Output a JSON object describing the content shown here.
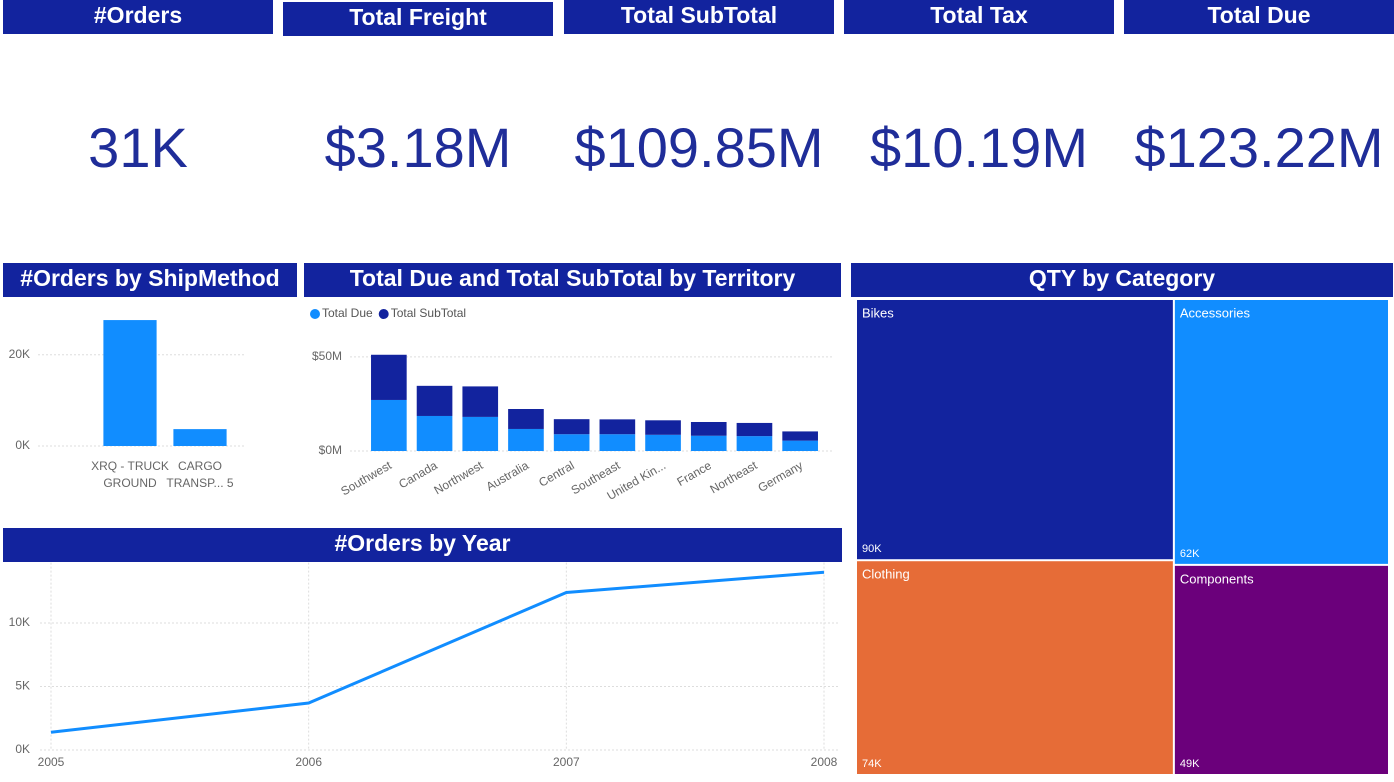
{
  "cards": [
    {
      "title": "#Orders",
      "value": "31K"
    },
    {
      "title": "Total Freight",
      "value": "$3.18M"
    },
    {
      "title": "Total SubTotal",
      "value": "$109.85M"
    },
    {
      "title": "Total Tax",
      "value": "$10.19M"
    },
    {
      "title": "Total Due",
      "value": "$123.22M"
    }
  ],
  "chart_data": [
    {
      "type": "bar",
      "title": "#Orders by ShipMethod",
      "categories": [
        "XRQ - TRUCK GROUND",
        "CARGO TRANSP... 5"
      ],
      "values": [
        27600,
        3700
      ],
      "color": "#118dff",
      "ylim": [
        0,
        32000
      ],
      "yticks": [
        {
          "value": 0,
          "label": "0K"
        },
        {
          "value": 20000,
          "label": "20K"
        }
      ],
      "grid": true
    },
    {
      "type": "bar",
      "stacked": true,
      "title": "Total Due and Total SubTotal by Territory",
      "categories": [
        "Southwest",
        "Canada",
        "Northwest",
        "Australia",
        "Central",
        "Southeast",
        "United Kin...",
        "France",
        "Northeast",
        "Germany"
      ],
      "series": [
        {
          "name": "Total Due",
          "color": "#118dff",
          "values": [
            27.1,
            18.6,
            18.1,
            11.7,
            8.9,
            8.9,
            8.6,
            8.1,
            7.9,
            5.5
          ]
        },
        {
          "name": "Total SubTotal",
          "color": "#12239e",
          "values": [
            24.0,
            16.0,
            16.2,
            10.6,
            8.0,
            7.9,
            7.7,
            7.3,
            7.0,
            4.9
          ]
        }
      ],
      "ylim": [
        0,
        60
      ],
      "yticks": [
        {
          "value": 0,
          "label": "$0M"
        },
        {
          "value": 50,
          "label": "$50M"
        }
      ],
      "grid": true
    },
    {
      "type": "line",
      "title": "#Orders by Year",
      "x": [
        2005,
        2006,
        2007,
        2008
      ],
      "values": [
        1400,
        3700,
        12400,
        14000
      ],
      "color": "#118dff",
      "xlim": [
        2005,
        2008
      ],
      "xticks": [
        2005,
        2006,
        2007,
        2008
      ],
      "ylim": [
        0,
        14600
      ],
      "yticks": [
        {
          "value": 0,
          "label": "0K"
        },
        {
          "value": 5000,
          "label": "5K"
        },
        {
          "value": 10000,
          "label": "10K"
        }
      ],
      "grid": true
    },
    {
      "type": "treemap",
      "title": "QTY by Category",
      "categories": [
        "Bikes",
        "Clothing",
        "Accessories",
        "Components"
      ],
      "values": [
        90000,
        74000,
        62000,
        49000
      ],
      "value_labels": [
        "90K",
        "74K",
        "62K",
        "49K"
      ],
      "colors": [
        "#12239e",
        "#e66c37",
        "#118dff",
        "#6b007b"
      ]
    }
  ]
}
